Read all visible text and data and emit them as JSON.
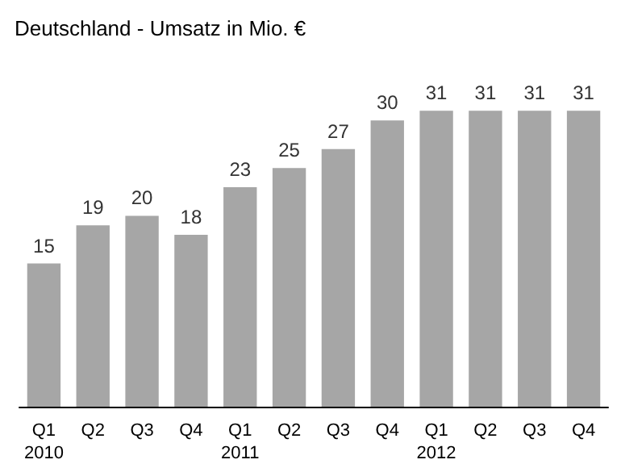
{
  "chart_data": {
    "type": "bar",
    "title": "Deutschland - Umsatz in Mio. €",
    "categories": [
      "Q1\n2010",
      "Q2",
      "Q3",
      "Q4",
      "Q1\n2011",
      "Q2",
      "Q3",
      "Q4",
      "Q1\n2012",
      "Q2",
      "Q3",
      "Q4"
    ],
    "values": [
      15,
      19,
      20,
      18,
      23,
      25,
      27,
      30,
      31,
      31,
      31,
      31
    ],
    "color": "#a6a6a6",
    "data_labels": true
  }
}
